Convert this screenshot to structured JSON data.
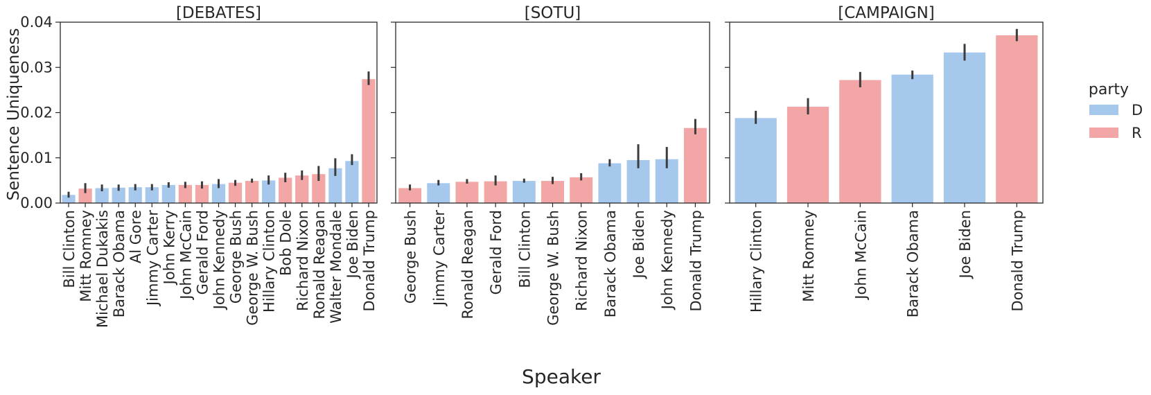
{
  "figure": {
    "ylabel": "Sentence Uniqueness",
    "xlabel": "Speaker",
    "legend_title": "party",
    "legend_placement": "right"
  },
  "legend": [
    {
      "label": "D",
      "color": "#a6c8ed"
    },
    {
      "label": "R",
      "color": "#f2a7a6"
    }
  ],
  "colors": {
    "D": "#a6c8ed",
    "R": "#f2a7a6",
    "errorbar": "#3b3b3b",
    "axis": "#262626"
  },
  "chart_data": [
    {
      "type": "bar",
      "title": "[DEBATES]",
      "ylim": [
        0,
        0.04
      ],
      "yticks": [
        "0.00",
        "0.01",
        "0.02",
        "0.03",
        "0.04"
      ],
      "grid": false,
      "categories": [
        "Bill Clinton",
        "Mitt Romney",
        "Michael Dukakis",
        "Barack Obama",
        "Al Gore",
        "Jimmy Carter",
        "John Kerry",
        "John McCain",
        "Gerald Ford",
        "John Kennedy",
        "George Bush",
        "George W. Bush",
        "Hillary Clinton",
        "Bob Dole",
        "Richard Nixon",
        "Ronald Reagan",
        "Walter Mondale",
        "Joe Biden",
        "Donald Trump"
      ],
      "party": [
        "D",
        "R",
        "D",
        "D",
        "D",
        "D",
        "D",
        "R",
        "R",
        "D",
        "R",
        "R",
        "D",
        "R",
        "R",
        "R",
        "D",
        "D",
        "R"
      ],
      "values": [
        0.0018,
        0.0032,
        0.0033,
        0.0034,
        0.0035,
        0.0035,
        0.004,
        0.004,
        0.004,
        0.0042,
        0.0045,
        0.0049,
        0.005,
        0.0056,
        0.0061,
        0.0064,
        0.0077,
        0.0093,
        0.0274
      ],
      "err_low": [
        0.0012,
        0.0022,
        0.0026,
        0.0027,
        0.0028,
        0.0028,
        0.0034,
        0.0033,
        0.0032,
        0.0033,
        0.0038,
        0.0045,
        0.0041,
        0.0046,
        0.0051,
        0.0049,
        0.006,
        0.0084,
        0.0261
      ],
      "err_high": [
        0.0025,
        0.0044,
        0.0041,
        0.0041,
        0.0042,
        0.0042,
        0.0046,
        0.0047,
        0.0048,
        0.0053,
        0.0051,
        0.0054,
        0.0061,
        0.0067,
        0.0072,
        0.0082,
        0.0099,
        0.0108,
        0.0291
      ]
    },
    {
      "type": "bar",
      "title": "[SOTU]",
      "ylim": [
        0,
        0.04
      ],
      "grid": false,
      "categories": [
        "George Bush",
        "Jimmy Carter",
        "Ronald Reagan",
        "Gerald Ford",
        "Bill Clinton",
        "George W. Bush",
        "Richard Nixon",
        "Barack Obama",
        "Joe Biden",
        "John Kennedy",
        "Donald Trump"
      ],
      "party": [
        "R",
        "D",
        "R",
        "R",
        "D",
        "R",
        "R",
        "D",
        "D",
        "D",
        "R"
      ],
      "values": [
        0.0033,
        0.0044,
        0.0047,
        0.0048,
        0.0049,
        0.0049,
        0.0057,
        0.0088,
        0.0095,
        0.0097,
        0.0166
      ],
      "err_low": [
        0.0028,
        0.0039,
        0.0043,
        0.0039,
        0.0045,
        0.0042,
        0.005,
        0.0081,
        0.0077,
        0.0077,
        0.0152
      ],
      "err_high": [
        0.0041,
        0.0051,
        0.0053,
        0.0061,
        0.0054,
        0.0058,
        0.0066,
        0.0097,
        0.013,
        0.0124,
        0.0186
      ]
    },
    {
      "type": "bar",
      "title": "[CAMPAIGN]",
      "ylim": [
        0,
        0.04
      ],
      "grid": false,
      "categories": [
        "Hillary Clinton",
        "Mitt Romney",
        "John McCain",
        "Barack Obama",
        "Joe Biden",
        "Donald Trump"
      ],
      "party": [
        "D",
        "R",
        "R",
        "D",
        "D",
        "R"
      ],
      "values": [
        0.0188,
        0.0213,
        0.0272,
        0.0284,
        0.0333,
        0.0371
      ],
      "err_low": [
        0.0175,
        0.0196,
        0.0256,
        0.0274,
        0.0315,
        0.0358
      ],
      "err_high": [
        0.0204,
        0.0232,
        0.029,
        0.0293,
        0.0352,
        0.0385
      ]
    }
  ]
}
